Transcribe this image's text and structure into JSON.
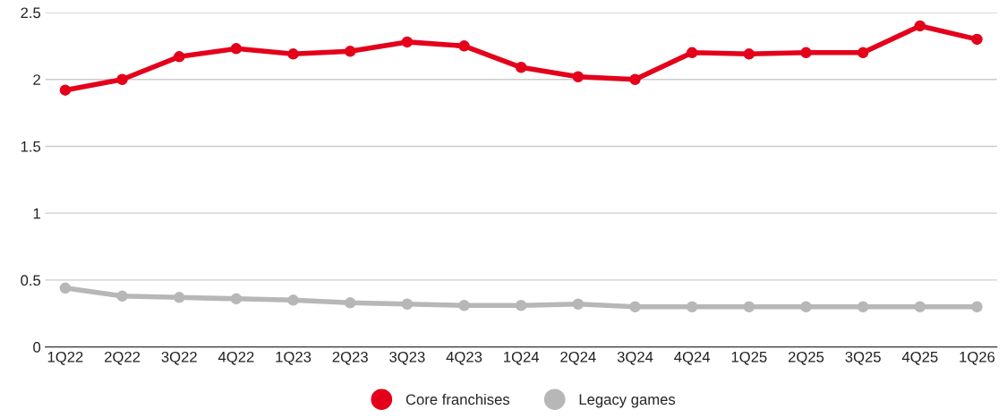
{
  "chart_data": {
    "type": "line",
    "categories": [
      "1Q22",
      "2Q22",
      "3Q22",
      "4Q22",
      "1Q23",
      "2Q23",
      "3Q23",
      "4Q23",
      "1Q24",
      "2Q24",
      "3Q24",
      "4Q24",
      "1Q25",
      "2Q25",
      "3Q25",
      "4Q25",
      "1Q26"
    ],
    "series": [
      {
        "name": "Core franchises",
        "color": "#e4001b",
        "values": [
          1.92,
          2.0,
          2.17,
          2.23,
          2.19,
          2.21,
          2.28,
          2.25,
          2.09,
          2.02,
          2.0,
          2.2,
          2.19,
          2.2,
          2.2,
          2.4,
          2.3
        ]
      },
      {
        "name": "Legacy games",
        "color": "#b7b7b7",
        "values": [
          0.44,
          0.38,
          0.37,
          0.36,
          0.35,
          0.33,
          0.32,
          0.31,
          0.31,
          0.32,
          0.3,
          0.3,
          0.3,
          0.3,
          0.3,
          0.3,
          0.3
        ]
      }
    ],
    "ylim": [
      0,
      2.5
    ],
    "yticks": [
      0,
      0.5,
      1,
      1.5,
      2,
      2.5
    ],
    "grid": "y",
    "legend": "bottom",
    "marker": "circle",
    "line_style": "solid"
  }
}
